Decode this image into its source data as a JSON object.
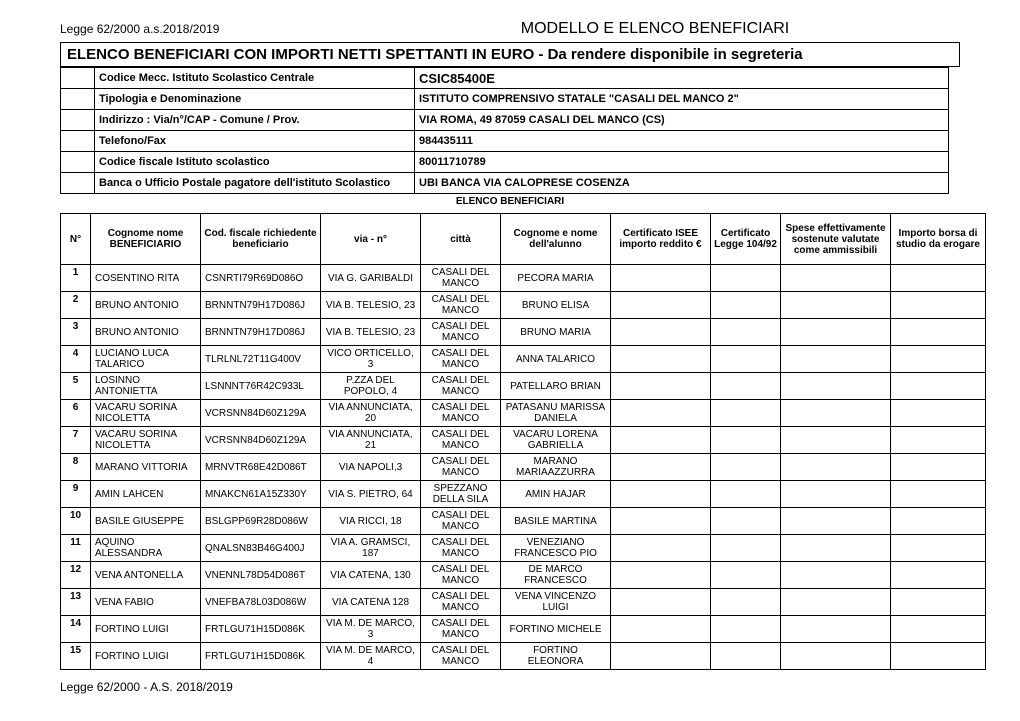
{
  "top": {
    "left": "Legge 62/2000 a.s.2018/2019",
    "center": "MODELLO E ELENCO BENEFICIARI"
  },
  "main_title": "ELENCO BENEFICIARI CON IMPORTI NETTI SPETTANTI IN EURO - Da rendere disponibile in segreteria",
  "info": {
    "codice_mecc_label": "Codice Mecc. Istituto Scolastico Centrale",
    "codice_mecc_value": "CSIC85400E",
    "tipologia_label": "Tipologia e Denominazione",
    "tipologia_value": "ISTITUTO COMPRENSIVO STATALE \"CASALI DEL MANCO 2\"",
    "indirizzo_label": "Indirizzo : Via/n°/CAP - Comune / Prov.",
    "indirizzo_value": "VIA ROMA, 49 87059 CASALI DEL MANCO (CS)",
    "telefono_label": "Telefono/Fax",
    "telefono_value": "984435111",
    "cf_label": "Codice fiscale Istituto scolastico",
    "cf_value": "80011710789",
    "banca_label": "Banca o Ufficio Postale pagatore dell'istituto Scolastico",
    "banca_value": "UBI BANCA VIA CALOPRESE COSENZA"
  },
  "section_label": "ELENCO BENEFICIARI",
  "columns": {
    "n": "N°",
    "beneficiario": "Cognome nome BENEFICIARIO",
    "cf": "Cod. fiscale richiedente beneficiario",
    "via": "via - n°",
    "citta": "città",
    "alunno": "Cognome e nome dell'alunno",
    "isee": "Certificato ISEE importo reddito €",
    "cert": "Certificato Legge 104/92",
    "spese": "Spese effettivamente sostenute valutate come ammissibili",
    "importo": "Importo borsa di studio da erogare"
  },
  "rows": [
    {
      "n": "1",
      "ben": "COSENTINO RITA",
      "cf": "CSNRTI79R69D086O",
      "via": "VIA G. GARIBALDI",
      "citta": "CASALI DEL MANCO",
      "alun": "PECORA MARIA"
    },
    {
      "n": "2",
      "ben": "BRUNO ANTONIO",
      "cf": "BRNNTN79H17D086J",
      "via": "VIA B. TELESIO, 23",
      "citta": "CASALI DEL MANCO",
      "alun": "BRUNO ELISA"
    },
    {
      "n": "3",
      "ben": "BRUNO ANTONIO",
      "cf": "BRNNTN79H17D086J",
      "via": "VIA B. TELESIO, 23",
      "citta": "CASALI DEL MANCO",
      "alun": "BRUNO MARIA"
    },
    {
      "n": "4",
      "ben": "LUCIANO LUCA TALARICO",
      "cf": "TLRLNL72T11G400V",
      "via": "VICO ORTICELLO, 3",
      "citta": "CASALI DEL MANCO",
      "alun": "ANNA TALARICO"
    },
    {
      "n": "5",
      "ben": "LOSINNO ANTONIETTA",
      "cf": "LSNNNT76R42C933L",
      "via": "P.ZZA DEL POPOLO, 4",
      "citta": "CASALI DEL MANCO",
      "alun": "PATELLARO BRIAN"
    },
    {
      "n": "6",
      "ben": "VACARU SORINA NICOLETTA",
      "cf": "VCRSNN84D60Z129A",
      "via": "VIA ANNUNCIATA, 20",
      "citta": "CASALI DEL MANCO",
      "alun": "PATASANU MARISSA DANIELA"
    },
    {
      "n": "7",
      "ben": "VACARU SORINA NICOLETTA",
      "cf": "VCRSNN84D60Z129A",
      "via": "VIA ANNUNCIATA, 21",
      "citta": "CASALI DEL MANCO",
      "alun": "VACARU LORENA GABRIELLA"
    },
    {
      "n": "8",
      "ben": "MARANO VITTORIA",
      "cf": "MRNVTR68E42D086T",
      "via": "VIA NAPOLI,3",
      "citta": "CASALI DEL MANCO",
      "alun": "MARANO MARIAAZZURRA"
    },
    {
      "n": "9",
      "ben": "AMIN LAHCEN",
      "cf": "MNAKCN61A15Z330Y",
      "via": "VIA S. PIETRO, 64",
      "citta": "SPEZZANO DELLA SILA",
      "alun": "AMIN HAJAR"
    },
    {
      "n": "10",
      "ben": "BASILE GIUSEPPE",
      "cf": "BSLGPP69R28D086W",
      "via": "VIA RICCI, 18",
      "citta": "CASALI DEL MANCO",
      "alun": "BASILE MARTINA"
    },
    {
      "n": "11",
      "ben": "AQUINO ALESSANDRA",
      "cf": "QNALSN83B46G400J",
      "via": "VIA A. GRAMSCI, 187",
      "citta": "CASALI DEL MANCO",
      "alun": "VENEZIANO FRANCESCO PIO"
    },
    {
      "n": "12",
      "ben": "VENA ANTONELLA",
      "cf": "VNENNL78D54D086T",
      "via": "VIA CATENA, 130",
      "citta": "CASALI DEL MANCO",
      "alun": "DE MARCO FRANCESCO"
    },
    {
      "n": "13",
      "ben": "VENA FABIO",
      "cf": "VNEFBA78L03D086W",
      "via": "VIA CATENA 128",
      "citta": "CASALI DEL MANCO",
      "alun": "VENA VINCENZO LUIGI"
    },
    {
      "n": "14",
      "ben": "FORTINO LUIGI",
      "cf": "FRTLGU71H15D086K",
      "via": "VIA M. DE MARCO, 3",
      "citta": "CASALI DEL MANCO",
      "alun": "FORTINO MICHELE"
    },
    {
      "n": "15",
      "ben": "FORTINO LUIGI",
      "cf": "FRTLGU71H15D086K",
      "via": "VIA M. DE MARCO, 4",
      "citta": "CASALI DEL MANCO",
      "alun": "FORTINO ELEONORA"
    }
  ],
  "footer": "Legge 62/2000 - A.S. 2018/2019"
}
